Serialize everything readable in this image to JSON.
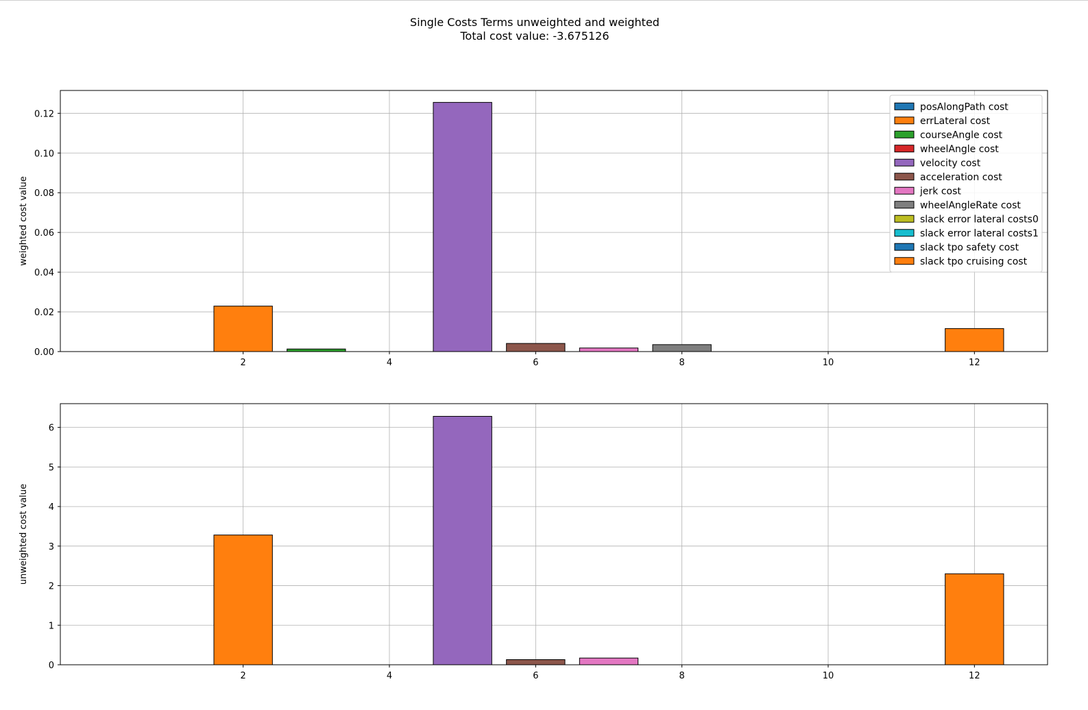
{
  "figure": {
    "title_line1": "Single Costs Terms unweighted and weighted",
    "title_line2": "Total cost value: -3.675126"
  },
  "legend": {
    "placement": "top-right",
    "entries": [
      {
        "label": "posAlongPath cost",
        "color": "#1f77b4"
      },
      {
        "label": "errLateral cost",
        "color": "#ff7f0e"
      },
      {
        "label": "courseAngle cost",
        "color": "#2ca02c"
      },
      {
        "label": "wheelAngle cost",
        "color": "#d62728"
      },
      {
        "label": "velocity cost",
        "color": "#9467bd"
      },
      {
        "label": "acceleration cost",
        "color": "#8c564b"
      },
      {
        "label": "jerk cost",
        "color": "#e377c2"
      },
      {
        "label": "wheelAngleRate cost",
        "color": "#7f7f7f"
      },
      {
        "label": "slack error lateral costs0",
        "color": "#bcbd22"
      },
      {
        "label": "slack error lateral costs1",
        "color": "#17becf"
      },
      {
        "label": "slack tpo safety cost",
        "color": "#1f77b4"
      },
      {
        "label": "slack tpo cruising cost",
        "color": "#ff7f0e"
      }
    ]
  },
  "chart_data": [
    {
      "type": "bar",
      "ylabel": "weighted cost value",
      "x": [
        1,
        2,
        3,
        4,
        5,
        6,
        7,
        8,
        9,
        10,
        11,
        12
      ],
      "values": [
        0.0,
        0.0229,
        0.0013,
        0.0,
        0.1255,
        0.0041,
        0.0018,
        0.0035,
        0.0,
        0.0,
        0.0,
        0.0116
      ],
      "xlim": [
        -0.5,
        13
      ],
      "ylim": [
        0,
        0.1315
      ],
      "xticks": [
        2,
        4,
        6,
        8,
        10,
        12
      ],
      "xtick_labels": [
        "2",
        "4",
        "6",
        "8",
        "10",
        "12"
      ],
      "yticks": [
        0,
        0.02,
        0.04,
        0.06,
        0.08,
        0.1,
        0.12
      ],
      "ytick_labels": [
        "0.00",
        "0.02",
        "0.04",
        "0.06",
        "0.08",
        "0.10",
        "0.12"
      ],
      "grid": true,
      "legend": "top-right"
    },
    {
      "type": "bar",
      "ylabel": "unweighted cost value",
      "x": [
        1,
        2,
        3,
        4,
        5,
        6,
        7,
        8,
        9,
        10,
        11,
        12
      ],
      "values": [
        0.0,
        3.28,
        0.0,
        0.0,
        6.28,
        0.13,
        0.17,
        0.0,
        0.0,
        0.0,
        0.0,
        2.3
      ],
      "xlim": [
        -0.5,
        13
      ],
      "ylim": [
        0,
        6.6
      ],
      "xticks": [
        2,
        4,
        6,
        8,
        10,
        12
      ],
      "xtick_labels": [
        "2",
        "4",
        "6",
        "8",
        "10",
        "12"
      ],
      "yticks": [
        0,
        1,
        2,
        3,
        4,
        5,
        6
      ],
      "ytick_labels": [
        "0",
        "1",
        "2",
        "3",
        "4",
        "5",
        "6"
      ],
      "grid": true
    }
  ]
}
